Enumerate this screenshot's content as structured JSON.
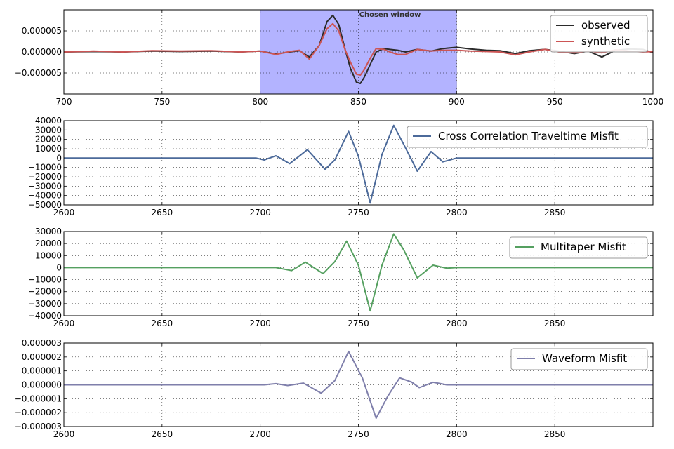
{
  "chart_data": [
    {
      "type": "line",
      "title": "",
      "xlabel": "",
      "ylabel": "",
      "xlim": [
        700,
        1000
      ],
      "ylim": [
        -1e-05,
        1e-05
      ],
      "xticks": [
        700,
        750,
        800,
        850,
        900,
        950,
        1000
      ],
      "xtick_labels": [
        "700",
        "750",
        "800",
        "850",
        "900",
        "950",
        "1000"
      ],
      "yticks": [
        -5e-06,
        0,
        5e-06
      ],
      "ytick_labels": [
        "−0.000005",
        "0.000000",
        "0.000005"
      ],
      "grid": true,
      "legend_position": "top-right",
      "window": {
        "label": "Chosen window",
        "x_start": 800,
        "x_end": 900,
        "color": "#b3b3ff"
      },
      "series": [
        {
          "name": "observed",
          "color": "#2b2b2b",
          "x": [
            700,
            715,
            730,
            745,
            760,
            775,
            790,
            800,
            808,
            815,
            820,
            825,
            830,
            834,
            837,
            840,
            843,
            846,
            849,
            851,
            853,
            856,
            859,
            863,
            866,
            870,
            874,
            880,
            887,
            893,
            900,
            907,
            915,
            922,
            930,
            937,
            945,
            952,
            960,
            967,
            974,
            981,
            988,
            995,
            1000
          ],
          "y": [
            0,
            1e-07,
            0,
            2e-07,
            1e-07,
            2e-07,
            0,
            2e-07,
            -5e-07,
            0,
            3e-07,
            -1.2e-06,
            1.5e-06,
            7.2e-06,
            8.7e-06,
            6.5e-06,
            1e-06,
            -4e-06,
            -7.2e-06,
            -7.5e-06,
            -6e-06,
            -3e-06,
            0,
            8e-07,
            6e-07,
            4e-07,
            0,
            6e-07,
            2e-07,
            8e-07,
            1.1e-06,
            7e-07,
            4e-07,
            3e-07,
            -4e-07,
            3e-07,
            6e-07,
            2e-07,
            -4e-07,
            2e-07,
            -1.2e-06,
            4e-07,
            7e-07,
            6e-07,
            -2e-07
          ]
        },
        {
          "name": "synthetic",
          "color": "#cc5555",
          "x": [
            700,
            715,
            730,
            745,
            760,
            775,
            790,
            800,
            808,
            815,
            820,
            825,
            830,
            834,
            837,
            840,
            843,
            846,
            849,
            851,
            853,
            856,
            859,
            863,
            866,
            870,
            874,
            880,
            887,
            893,
            900,
            907,
            915,
            922,
            930,
            937,
            945,
            952,
            960,
            967,
            974,
            981,
            988,
            995,
            1000
          ],
          "y": [
            0,
            2e-07,
            0,
            3e-07,
            2e-07,
            3e-07,
            0,
            2e-07,
            -6e-07,
            1e-07,
            4e-07,
            -1.7e-06,
            1.5e-06,
            5.5e-06,
            6.7e-06,
            5e-06,
            8e-07,
            -2.5e-06,
            -5.3e-06,
            -5.5e-06,
            -4.2e-06,
            -1.5e-06,
            8e-07,
            6e-07,
            0,
            -6e-07,
            -6e-07,
            6e-07,
            2e-07,
            4e-07,
            4e-07,
            2e-07,
            1e-07,
            0,
            -7e-07,
            0,
            6e-07,
            0,
            -2e-07,
            2e-07,
            -2e-07,
            5e-07,
            2e-07,
            0,
            1e-07
          ]
        }
      ]
    },
    {
      "type": "line",
      "title": "",
      "xlabel": "",
      "ylabel": "",
      "xlim": [
        2600,
        2900
      ],
      "ylim": [
        -50000,
        40000
      ],
      "xticks": [
        2600,
        2650,
        2700,
        2750,
        2800,
        2850
      ],
      "xtick_labels": [
        "2600",
        "2650",
        "2700",
        "2750",
        "2800",
        "2850"
      ],
      "yticks": [
        -50000,
        -40000,
        -30000,
        -20000,
        -10000,
        0,
        10000,
        20000,
        30000,
        40000
      ],
      "ytick_labels": [
        "−50000",
        "−40000",
        "−30000",
        "−20000",
        "−10000",
        "0",
        "10000",
        "20000",
        "30000",
        "40000"
      ],
      "grid": true,
      "legend_position": "top-right",
      "series": [
        {
          "name": "Cross Correlation Traveltime Misfit",
          "color": "#4c6a9a",
          "x": [
            2600,
            2698,
            2702,
            2708,
            2715,
            2724,
            2733,
            2738,
            2745,
            2750,
            2756,
            2762,
            2768,
            2773,
            2780,
            2787,
            2793,
            2800,
            2900
          ],
          "y": [
            0,
            0,
            -2000,
            2500,
            -6000,
            9000,
            -12000,
            -2000,
            28500,
            2000,
            -48000,
            4000,
            35000,
            15000,
            -14000,
            7000,
            -4000,
            0,
            0
          ]
        }
      ]
    },
    {
      "type": "line",
      "title": "",
      "xlabel": "",
      "ylabel": "",
      "xlim": [
        2600,
        2900
      ],
      "ylim": [
        -40000,
        30000
      ],
      "xticks": [
        2600,
        2650,
        2700,
        2750,
        2800,
        2850
      ],
      "xtick_labels": [
        "2600",
        "2650",
        "2700",
        "2750",
        "2800",
        "2850"
      ],
      "yticks": [
        -40000,
        -30000,
        -20000,
        -10000,
        0,
        10000,
        20000,
        30000
      ],
      "ytick_labels": [
        "−40000",
        "−30000",
        "−20000",
        "−10000",
        "0",
        "10000",
        "20000",
        "30000"
      ],
      "grid": true,
      "legend_position": "top-right",
      "series": [
        {
          "name": "Multitaper Misfit",
          "color": "#55a060",
          "x": [
            2600,
            2702,
            2708,
            2716,
            2723,
            2732,
            2738,
            2744,
            2750,
            2756,
            2762,
            2768,
            2773,
            2780,
            2788,
            2795,
            2800,
            2900
          ],
          "y": [
            0,
            0,
            0,
            -2500,
            4500,
            -5000,
            5000,
            22000,
            2000,
            -36000,
            2000,
            28000,
            15000,
            -8500,
            2000,
            -500,
            0,
            0
          ]
        }
      ]
    },
    {
      "type": "line",
      "title": "",
      "xlabel": "",
      "ylabel": "",
      "xlim": [
        2600,
        2900
      ],
      "ylim": [
        -3e-06,
        3e-06
      ],
      "xticks": [
        2600,
        2650,
        2700,
        2750,
        2800,
        2850
      ],
      "xtick_labels": [
        "2600",
        "2650",
        "2700",
        "2750",
        "2800",
        "2850"
      ],
      "yticks": [
        -3e-06,
        -2e-06,
        -1e-06,
        0,
        1e-06,
        2e-06,
        3e-06
      ],
      "ytick_labels": [
        "−0.000003",
        "−0.000002",
        "−0.000001",
        "0.000000",
        "0.000001",
        "0.000002",
        "0.000003"
      ],
      "grid": true,
      "legend_position": "top-right",
      "series": [
        {
          "name": "Waveform Misfit",
          "color": "#7f7fab",
          "x": [
            2600,
            2702,
            2708,
            2714,
            2722,
            2731,
            2738,
            2745,
            2752,
            2759,
            2765,
            2771,
            2777,
            2781,
            2788,
            2795,
            2800,
            2900
          ],
          "y": [
            0,
            0,
            8e-08,
            -5e-08,
            1.2e-07,
            -6e-07,
            3e-07,
            2.4e-06,
            5e-07,
            -2.4e-06,
            -8e-07,
            5e-07,
            2e-07,
            -2e-07,
            1.8e-07,
            0,
            0,
            0
          ]
        }
      ]
    }
  ]
}
